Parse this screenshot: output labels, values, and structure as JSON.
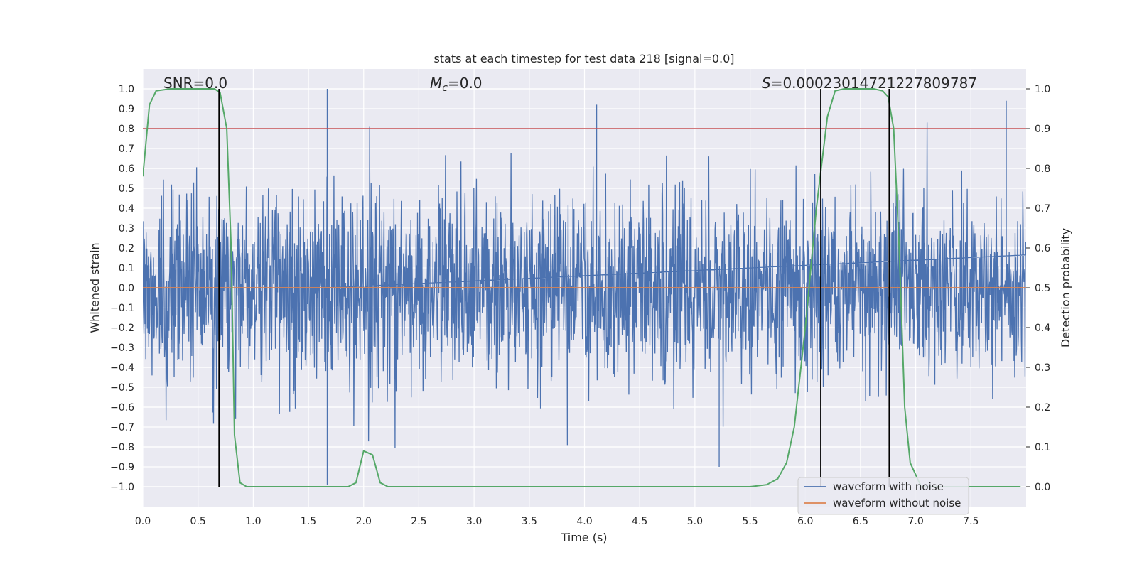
{
  "chart_data": {
    "type": "line",
    "title": "stats at each timestep for test data 218 [signal=0.0]",
    "xlabel": "Time (s)",
    "ylabel": "Whitened strain",
    "y2label": "Detection probability",
    "xlim": [
      0.0,
      8.0
    ],
    "ylim": [
      -1.1,
      1.1
    ],
    "y2lim": [
      -0.05,
      1.05
    ],
    "xticks": [
      0.0,
      0.5,
      1.0,
      1.5,
      2.0,
      2.5,
      3.0,
      3.5,
      4.0,
      4.5,
      5.0,
      5.5,
      6.0,
      6.5,
      7.0,
      7.5
    ],
    "xtick_labels": [
      "0.0",
      "0.5",
      "1.0",
      "1.5",
      "2.0",
      "2.5",
      "3.0",
      "3.5",
      "4.0",
      "4.5",
      "5.0",
      "5.5",
      "6.0",
      "6.5",
      "7.0",
      "7.5"
    ],
    "yticks": [
      -1.0,
      -0.9,
      -0.8,
      -0.7,
      -0.6,
      -0.5,
      -0.4,
      -0.3,
      -0.2,
      -0.1,
      0.0,
      0.1,
      0.2,
      0.3,
      0.4,
      0.5,
      0.6,
      0.7,
      0.8,
      0.9,
      1.0
    ],
    "ytick_labels": [
      "−1.0",
      "−0.9",
      "−0.8",
      "−0.7",
      "−0.6",
      "−0.5",
      "−0.4",
      "−0.3",
      "−0.2",
      "−0.1",
      "0.0",
      "0.1",
      "0.2",
      "0.3",
      "0.4",
      "0.5",
      "0.6",
      "0.7",
      "0.8",
      "0.9",
      "1.0"
    ],
    "y2ticks": [
      0.0,
      0.1,
      0.2,
      0.3,
      0.4,
      0.5,
      0.6,
      0.7,
      0.8,
      0.9,
      1.0
    ],
    "y2tick_labels": [
      "0.0",
      "0.1",
      "0.2",
      "0.3",
      "0.4",
      "0.5",
      "0.6",
      "0.7",
      "0.8",
      "0.9",
      "1.0"
    ],
    "grid": true,
    "legend_position": "bottom-right",
    "legend": [
      {
        "label": "waveform with noise",
        "color": "#4c72b0"
      },
      {
        "label": "waveform without noise",
        "color": "#dd8452"
      }
    ],
    "annotations": {
      "snr": "SNR=0.0",
      "mc_symbol": "M",
      "mc_sub": "c",
      "mc_value": "=0.0",
      "s_symbol": "S",
      "s_value": "=0.00023014721227809787"
    },
    "series": [
      {
        "name": "waveform with noise",
        "color": "#4c72b0",
        "axis": "left",
        "kind": "noise",
        "amplitude_envelope": 0.45,
        "notable_peaks": [
          {
            "x": 1.67,
            "y": 1.0
          },
          {
            "x": 1.67,
            "y": -0.99
          },
          {
            "x": 5.22,
            "y": -0.9
          },
          {
            "x": 4.11,
            "y": 0.92
          },
          {
            "x": 7.82,
            "y": 0.94
          }
        ]
      },
      {
        "name": "waveform without noise",
        "color": "#dd8452",
        "axis": "left",
        "x": [
          0.0,
          8.0
        ],
        "y": [
          0.0,
          0.0
        ]
      },
      {
        "name": "detection probability",
        "color": "#55a868",
        "axis": "right",
        "x": [
          0.0,
          0.06,
          0.12,
          0.25,
          0.5,
          0.65,
          0.7,
          0.76,
          0.8,
          0.83,
          0.88,
          0.94,
          1.0,
          1.5,
          1.86,
          1.93,
          2.0,
          2.08,
          2.15,
          2.22,
          3.0,
          5.0,
          5.5,
          5.65,
          5.75,
          5.83,
          5.9,
          6.0,
          6.1,
          6.2,
          6.27,
          6.35,
          6.5,
          6.62,
          6.7,
          6.75,
          6.8,
          6.85,
          6.9,
          6.95,
          7.05,
          7.5,
          7.95
        ],
        "y": [
          0.78,
          0.96,
          0.995,
          1.0,
          1.0,
          1.0,
          0.99,
          0.9,
          0.6,
          0.13,
          0.01,
          0.0,
          0.0,
          0.0,
          0.0,
          0.01,
          0.09,
          0.08,
          0.01,
          0.0,
          0.0,
          0.0,
          0.0,
          0.005,
          0.02,
          0.06,
          0.15,
          0.4,
          0.7,
          0.93,
          0.995,
          1.0,
          1.0,
          1.0,
          0.995,
          0.98,
          0.9,
          0.6,
          0.2,
          0.06,
          0.0,
          0.0,
          0.0
        ]
      },
      {
        "name": "threshold",
        "color": "#c44e52",
        "axis": "right",
        "x": [
          0.0,
          8.0
        ],
        "y": [
          0.9,
          0.9
        ]
      }
    ],
    "vertical_markers": [
      0.69,
      6.14,
      6.76
    ]
  }
}
